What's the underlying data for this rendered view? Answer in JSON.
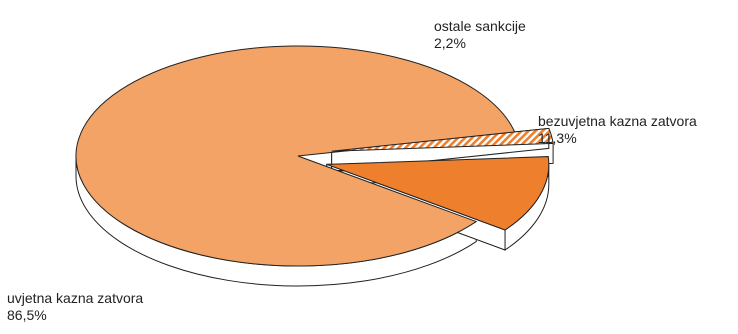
{
  "chart_data": {
    "type": "pie",
    "style": "3d-exploded",
    "slices": [
      {
        "label": "uvjetna kazna zatvora",
        "value": 86.5,
        "display": "86,5%",
        "color": "#F2A365",
        "pattern": "solid"
      },
      {
        "label": "bezuvjetna kazna zatvora",
        "value": 11.3,
        "display": "11,3%",
        "color": "#EE7F2C",
        "pattern": "solid"
      },
      {
        "label": "ostale sankcije",
        "value": 2.2,
        "display": "2,2%",
        "color": "#EE7F2C",
        "pattern": "diagonal-stripes"
      }
    ],
    "legend": "none"
  }
}
